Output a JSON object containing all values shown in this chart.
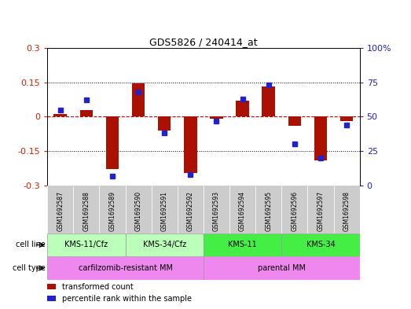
{
  "title": "GDS5826 / 240414_at",
  "samples": [
    "GSM1692587",
    "GSM1692588",
    "GSM1692589",
    "GSM1692590",
    "GSM1692591",
    "GSM1692592",
    "GSM1692593",
    "GSM1692594",
    "GSM1692595",
    "GSM1692596",
    "GSM1692597",
    "GSM1692598"
  ],
  "transformed_count": [
    0.01,
    0.03,
    -0.23,
    0.145,
    -0.06,
    -0.245,
    -0.01,
    0.07,
    0.13,
    -0.04,
    -0.19,
    -0.02
  ],
  "percentile_rank": [
    55,
    62,
    7,
    68,
    38,
    8,
    47,
    63,
    73,
    30,
    20,
    44
  ],
  "ylim_left": [
    -0.3,
    0.3
  ],
  "ylim_right": [
    0,
    100
  ],
  "yticks_left": [
    -0.3,
    -0.15,
    0,
    0.15,
    0.3
  ],
  "yticks_right": [
    0,
    25,
    50,
    75,
    100
  ],
  "bar_color": "#aa1100",
  "dot_color": "#2222cc",
  "zero_line_color": "#cc0000",
  "cl_groups": [
    {
      "label": "KMS-11/Cfz",
      "start": 0,
      "end": 3,
      "color": "#bbffbb"
    },
    {
      "label": "KMS-34/Cfz",
      "start": 3,
      "end": 6,
      "color": "#bbffbb"
    },
    {
      "label": "KMS-11",
      "start": 6,
      "end": 9,
      "color": "#44ee44"
    },
    {
      "label": "KMS-34",
      "start": 9,
      "end": 12,
      "color": "#44ee44"
    }
  ],
  "ct_groups": [
    {
      "label": "carfilzomib-resistant MM",
      "start": 0,
      "end": 6,
      "color": "#ee88ee"
    },
    {
      "label": "parental MM",
      "start": 6,
      "end": 12,
      "color": "#ee88ee"
    }
  ],
  "legend_items": [
    {
      "label": "transformed count",
      "color": "#aa1100"
    },
    {
      "label": "percentile rank within the sample",
      "color": "#2222cc"
    }
  ],
  "cell_line_label": "cell line",
  "cell_type_label": "cell type"
}
